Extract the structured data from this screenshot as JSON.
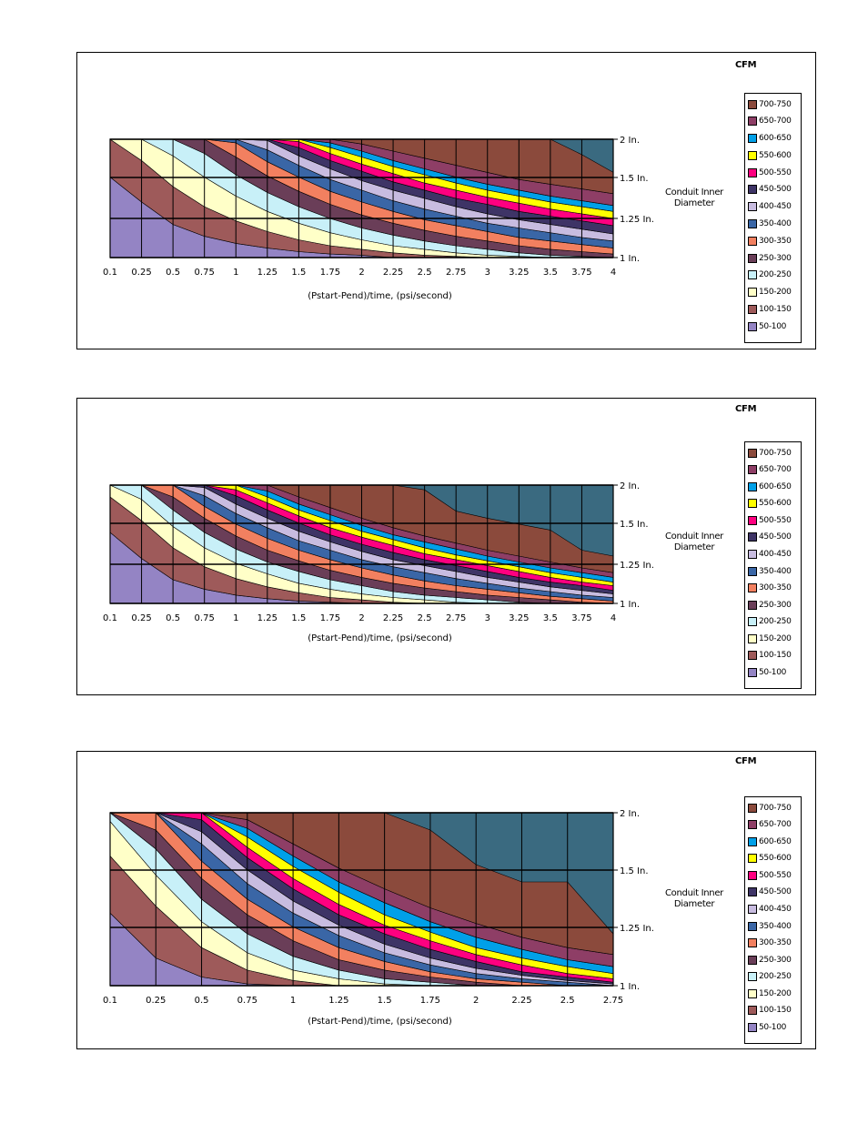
{
  "chart_data": [
    {
      "type": "area",
      "variant": "stacked-contour",
      "xlabel": "(Pstart-Pend)/time, (psi/second)",
      "x_ticks": [
        "0.1",
        "0.25",
        "0.5",
        "0.75",
        "1",
        "1.25",
        "1.5",
        "1.75",
        "2",
        "2.25",
        "2.5",
        "2.75",
        "3",
        "3.25",
        "3.5",
        "3.75",
        "4"
      ],
      "x": [
        0.1,
        0.25,
        0.5,
        0.75,
        1,
        1.25,
        1.5,
        1.75,
        2,
        2.25,
        2.5,
        2.75,
        3,
        3.25,
        3.5,
        3.75,
        4
      ],
      "ylabel": "Conduit Inner Diameter",
      "y_ticks": [
        "2 In.",
        "1.5 In.",
        "1.25 In.",
        "1 In."
      ],
      "legend_title": "CFM",
      "legend": [
        "700-750",
        "650-700",
        "600-650",
        "550-600",
        "500-550",
        "450-500",
        "400-450",
        "350-400",
        "300-350",
        "250-300",
        "200-250",
        "150-200",
        "100-150",
        "50-100"
      ],
      "boundaries": [
        {
          "label": "50-100/100-150",
          "values": [
            0.68,
            0.47,
            0.28,
            0.18,
            0.12,
            0.08,
            0.05,
            0.03,
            0.02,
            0,
            0,
            0,
            0,
            0,
            0,
            0,
            0
          ]
        },
        {
          "label": "100-150/150-200",
          "values": [
            1.0,
            0.82,
            0.6,
            0.43,
            0.31,
            0.22,
            0.15,
            0.1,
            0.07,
            0.04,
            0.02,
            0.01,
            0,
            0,
            0,
            0,
            0
          ]
        },
        {
          "label": "150-200/200-250",
          "values": [
            1.0,
            1.0,
            0.86,
            0.68,
            0.52,
            0.39,
            0.29,
            0.21,
            0.15,
            0.1,
            0.07,
            0.04,
            0.02,
            0.01,
            0,
            0,
            0
          ]
        },
        {
          "label": "200-250/250-300",
          "values": [
            1.0,
            1.0,
            1.0,
            0.88,
            0.7,
            0.55,
            0.43,
            0.33,
            0.25,
            0.19,
            0.14,
            0.1,
            0.07,
            0.04,
            0.02,
            0.01,
            0
          ]
        },
        {
          "label": "250-300/300-350",
          "values": [
            1.0,
            1.0,
            1.0,
            1.0,
            0.85,
            0.69,
            0.56,
            0.45,
            0.36,
            0.29,
            0.23,
            0.18,
            0.14,
            0.1,
            0.07,
            0.05,
            0.03
          ]
        },
        {
          "label": "300-350/350-400",
          "values": [
            1.0,
            1.0,
            1.0,
            1.0,
            0.97,
            0.81,
            0.68,
            0.56,
            0.47,
            0.39,
            0.32,
            0.27,
            0.22,
            0.17,
            0.14,
            0.11,
            0.08
          ]
        },
        {
          "label": "350-400/400-450",
          "values": [
            1.0,
            1.0,
            1.0,
            1.0,
            1.0,
            0.91,
            0.78,
            0.66,
            0.57,
            0.48,
            0.41,
            0.35,
            0.29,
            0.25,
            0.21,
            0.17,
            0.14
          ]
        },
        {
          "label": "400-450/450-500",
          "values": [
            1.0,
            1.0,
            1.0,
            1.0,
            1.0,
            0.99,
            0.86,
            0.75,
            0.65,
            0.57,
            0.5,
            0.43,
            0.37,
            0.32,
            0.28,
            0.24,
            0.2
          ]
        },
        {
          "label": "450-500/500-550",
          "values": [
            1.0,
            1.0,
            1.0,
            1.0,
            1.0,
            1.0,
            0.93,
            0.82,
            0.73,
            0.64,
            0.57,
            0.5,
            0.45,
            0.39,
            0.35,
            0.31,
            0.27
          ]
        },
        {
          "label": "500-550/550-600",
          "values": [
            1.0,
            1.0,
            1.0,
            1.0,
            1.0,
            1.0,
            0.98,
            0.88,
            0.79,
            0.71,
            0.63,
            0.57,
            0.51,
            0.46,
            0.41,
            0.37,
            0.33
          ]
        },
        {
          "label": "550-600/600-650",
          "values": [
            1.0,
            1.0,
            1.0,
            1.0,
            1.0,
            1.0,
            1.0,
            0.93,
            0.85,
            0.77,
            0.7,
            0.63,
            0.57,
            0.52,
            0.47,
            0.43,
            0.39
          ]
        },
        {
          "label": "600-650/650-700",
          "values": [
            1.0,
            1.0,
            1.0,
            1.0,
            1.0,
            1.0,
            1.0,
            0.97,
            0.9,
            0.82,
            0.75,
            0.68,
            0.62,
            0.57,
            0.52,
            0.48,
            0.44
          ]
        },
        {
          "label": "650-700/700-750",
          "values": [
            1.0,
            1.0,
            1.0,
            1.0,
            1.0,
            1.0,
            1.0,
            1.0,
            0.96,
            0.9,
            0.84,
            0.78,
            0.72,
            0.66,
            0.62,
            0.58,
            0.54
          ]
        },
        {
          "label": "700-750 upper",
          "values": [
            1.0,
            1.0,
            1.0,
            1.0,
            1.0,
            1.0,
            1.0,
            1.0,
            1.0,
            1.0,
            1.0,
            1.0,
            1.0,
            1.0,
            1.0,
            0.87,
            0.72
          ]
        }
      ]
    },
    {
      "type": "area",
      "variant": "stacked-contour",
      "xlabel": "(Pstart-Pend)/time, (psi/second)",
      "x_ticks": [
        "0.1",
        "0.25",
        "0.5",
        "0.75",
        "1",
        "1.25",
        "1.5",
        "1.75",
        "2",
        "2.25",
        "2.5",
        "2.75",
        "3",
        "3.25",
        "3.5",
        "3.75",
        "4"
      ],
      "x": [
        0.1,
        0.25,
        0.5,
        0.75,
        1,
        1.25,
        1.5,
        1.75,
        2,
        2.25,
        2.5,
        2.75,
        3,
        3.25,
        3.5,
        3.75,
        4
      ],
      "ylabel": "Conduit Inner Diameter",
      "y_ticks": [
        "2 In.",
        "1.5 In.",
        "1.25 In.",
        "1 In."
      ],
      "legend_title": "CFM",
      "legend": [
        "700-750",
        "650-700",
        "600-650",
        "550-600",
        "500-550",
        "450-500",
        "400-450",
        "350-400",
        "300-350",
        "250-300",
        "200-250",
        "150-200",
        "100-150",
        "50-100"
      ],
      "boundaries": [
        {
          "label": "50-100/100-150",
          "values": [
            0.6,
            0.38,
            0.2,
            0.12,
            0.07,
            0.04,
            0.02,
            0.01,
            0,
            0,
            0,
            0,
            0,
            0,
            0,
            0,
            0
          ]
        },
        {
          "label": "100-150/150-200",
          "values": [
            0.9,
            0.7,
            0.47,
            0.31,
            0.21,
            0.14,
            0.09,
            0.05,
            0.03,
            0.01,
            0,
            0,
            0,
            0,
            0,
            0,
            0
          ]
        },
        {
          "label": "150-200/200-250",
          "values": [
            1.0,
            0.88,
            0.65,
            0.47,
            0.34,
            0.25,
            0.17,
            0.12,
            0.08,
            0.05,
            0.03,
            0.01,
            0,
            0,
            0,
            0,
            0
          ]
        },
        {
          "label": "200-250/250-300",
          "values": [
            1.0,
            1.0,
            0.79,
            0.6,
            0.46,
            0.35,
            0.27,
            0.2,
            0.15,
            0.1,
            0.07,
            0.05,
            0.03,
            0.01,
            0,
            0,
            0
          ]
        },
        {
          "label": "250-300/300-350",
          "values": [
            1.0,
            1.0,
            0.9,
            0.72,
            0.57,
            0.45,
            0.36,
            0.28,
            0.22,
            0.17,
            0.13,
            0.1,
            0.07,
            0.05,
            0.03,
            0.01,
            0
          ]
        },
        {
          "label": "300-350/350-400",
          "values": [
            1.0,
            1.0,
            1.0,
            0.82,
            0.67,
            0.55,
            0.45,
            0.37,
            0.3,
            0.24,
            0.19,
            0.15,
            0.12,
            0.09,
            0.06,
            0.04,
            0.02
          ]
        },
        {
          "label": "350-400/400-450",
          "values": [
            1.0,
            1.0,
            1.0,
            0.91,
            0.76,
            0.64,
            0.53,
            0.45,
            0.37,
            0.31,
            0.26,
            0.21,
            0.17,
            0.13,
            0.1,
            0.07,
            0.05
          ]
        },
        {
          "label": "400-450/450-500",
          "values": [
            1.0,
            1.0,
            1.0,
            0.98,
            0.84,
            0.72,
            0.61,
            0.52,
            0.44,
            0.37,
            0.32,
            0.27,
            0.22,
            0.18,
            0.14,
            0.11,
            0.08
          ]
        },
        {
          "label": "450-500/500-550",
          "values": [
            1.0,
            1.0,
            1.0,
            1.0,
            0.91,
            0.79,
            0.68,
            0.58,
            0.5,
            0.43,
            0.37,
            0.32,
            0.27,
            0.22,
            0.18,
            0.15,
            0.11
          ]
        },
        {
          "label": "500-550/550-600",
          "values": [
            1.0,
            1.0,
            1.0,
            1.0,
            0.96,
            0.85,
            0.74,
            0.64,
            0.56,
            0.49,
            0.42,
            0.37,
            0.32,
            0.27,
            0.22,
            0.18,
            0.15
          ]
        },
        {
          "label": "550-600/600-650",
          "values": [
            1.0,
            1.0,
            1.0,
            1.0,
            1.0,
            0.9,
            0.79,
            0.7,
            0.61,
            0.54,
            0.47,
            0.41,
            0.36,
            0.31,
            0.26,
            0.22,
            0.18
          ]
        },
        {
          "label": "600-650/650-700",
          "values": [
            1.0,
            1.0,
            1.0,
            1.0,
            1.0,
            0.95,
            0.84,
            0.75,
            0.66,
            0.58,
            0.52,
            0.46,
            0.4,
            0.35,
            0.3,
            0.26,
            0.22
          ]
        },
        {
          "label": "650-700/700-750",
          "values": [
            1.0,
            1.0,
            1.0,
            1.0,
            1.0,
            1.0,
            0.9,
            0.81,
            0.72,
            0.64,
            0.57,
            0.51,
            0.45,
            0.4,
            0.35,
            0.3,
            0.26
          ]
        },
        {
          "label": "700-750 upper",
          "values": [
            1.0,
            1.0,
            1.0,
            1.0,
            1.0,
            1.0,
            1.0,
            1.0,
            1.0,
            1.0,
            0.96,
            0.78,
            0.72,
            0.67,
            0.62,
            0.45,
            0.4
          ]
        }
      ]
    },
    {
      "type": "area",
      "variant": "stacked-contour",
      "xlabel": "(Pstart-Pend)/time, (psi/second)",
      "x_ticks": [
        "0.1",
        "0.25",
        "0.5",
        "0.75",
        "1",
        "1.25",
        "1.5",
        "1.75",
        "2",
        "2.25",
        "2.5",
        "2.75"
      ],
      "x": [
        0.1,
        0.25,
        0.5,
        0.75,
        1,
        1.25,
        1.5,
        1.75,
        2,
        2.25,
        2.5,
        2.75
      ],
      "ylabel": "Conduit Inner Diameter",
      "y_ticks": [
        "2 In.",
        "1.5 In.",
        "1.25 In.",
        "1 In."
      ],
      "legend_title": "CFM",
      "legend": [
        "700-750",
        "650-700",
        "600-650",
        "550-600",
        "500-550",
        "450-500",
        "400-450",
        "350-400",
        "300-350",
        "250-300",
        "200-250",
        "150-200",
        "100-150",
        "50-100"
      ],
      "boundaries": [
        {
          "label": "50-100/100-150",
          "values": [
            0.42,
            0.16,
            0.05,
            0.01,
            0,
            0,
            0,
            0,
            0,
            0,
            0,
            0
          ]
        },
        {
          "label": "100-150/150-200",
          "values": [
            0.75,
            0.46,
            0.22,
            0.09,
            0.03,
            0,
            0,
            0,
            0,
            0,
            0,
            0
          ]
        },
        {
          "label": "150-200/200-250",
          "values": [
            0.95,
            0.64,
            0.37,
            0.19,
            0.09,
            0.04,
            0.01,
            0,
            0,
            0,
            0,
            0
          ]
        },
        {
          "label": "200-250/250-300",
          "values": [
            1.0,
            0.79,
            0.5,
            0.3,
            0.17,
            0.09,
            0.04,
            0.02,
            0,
            0,
            0,
            0
          ]
        },
        {
          "label": "250-300/300-350",
          "values": [
            1.0,
            0.9,
            0.62,
            0.41,
            0.26,
            0.15,
            0.09,
            0.05,
            0.02,
            0,
            0,
            0
          ]
        },
        {
          "label": "300-350/350-400",
          "values": [
            1.0,
            1.0,
            0.72,
            0.5,
            0.34,
            0.22,
            0.14,
            0.08,
            0.04,
            0.02,
            0,
            0
          ]
        },
        {
          "label": "350-400/400-450",
          "values": [
            1.0,
            1.0,
            0.82,
            0.59,
            0.42,
            0.29,
            0.19,
            0.12,
            0.07,
            0.04,
            0.02,
            0
          ]
        },
        {
          "label": "400-450/450-500",
          "values": [
            1.0,
            1.0,
            0.89,
            0.67,
            0.49,
            0.35,
            0.24,
            0.16,
            0.1,
            0.06,
            0.03,
            0.01
          ]
        },
        {
          "label": "450-500/500-550",
          "values": [
            1.0,
            1.0,
            0.96,
            0.74,
            0.56,
            0.41,
            0.3,
            0.21,
            0.14,
            0.08,
            0.05,
            0.02
          ]
        },
        {
          "label": "500-550/550-600",
          "values": [
            1.0,
            1.0,
            1.0,
            0.8,
            0.62,
            0.47,
            0.35,
            0.26,
            0.18,
            0.12,
            0.07,
            0.04
          ]
        },
        {
          "label": "550-600/600-650",
          "values": [
            1.0,
            1.0,
            1.0,
            0.86,
            0.69,
            0.54,
            0.41,
            0.31,
            0.22,
            0.16,
            0.11,
            0.07
          ]
        },
        {
          "label": "600-650/650-700",
          "values": [
            1.0,
            1.0,
            1.0,
            0.91,
            0.75,
            0.6,
            0.48,
            0.37,
            0.28,
            0.21,
            0.15,
            0.11
          ]
        },
        {
          "label": "650-700/700-750",
          "values": [
            1.0,
            1.0,
            1.0,
            0.96,
            0.82,
            0.68,
            0.56,
            0.45,
            0.36,
            0.28,
            0.22,
            0.18
          ]
        },
        {
          "label": "700-750 upper",
          "values": [
            1.0,
            1.0,
            1.0,
            1.0,
            1.0,
            1.0,
            1.0,
            0.9,
            0.7,
            0.6,
            0.6,
            0.3
          ]
        }
      ]
    }
  ],
  "style": {
    "band_colors": [
      "#9484c4",
      "#9e5a5a",
      "#ffffc8",
      "#c8f0f8",
      "#6a3e58",
      "#f28060",
      "#3a66a6",
      "#c8bce0",
      "#3e3466",
      "#ff0080",
      "#ffff00",
      "#00a0e8",
      "#8e3e66",
      "#8b4a3c"
    ],
    "empty_color": "#3a6a80",
    "grid_color": "#000000"
  }
}
